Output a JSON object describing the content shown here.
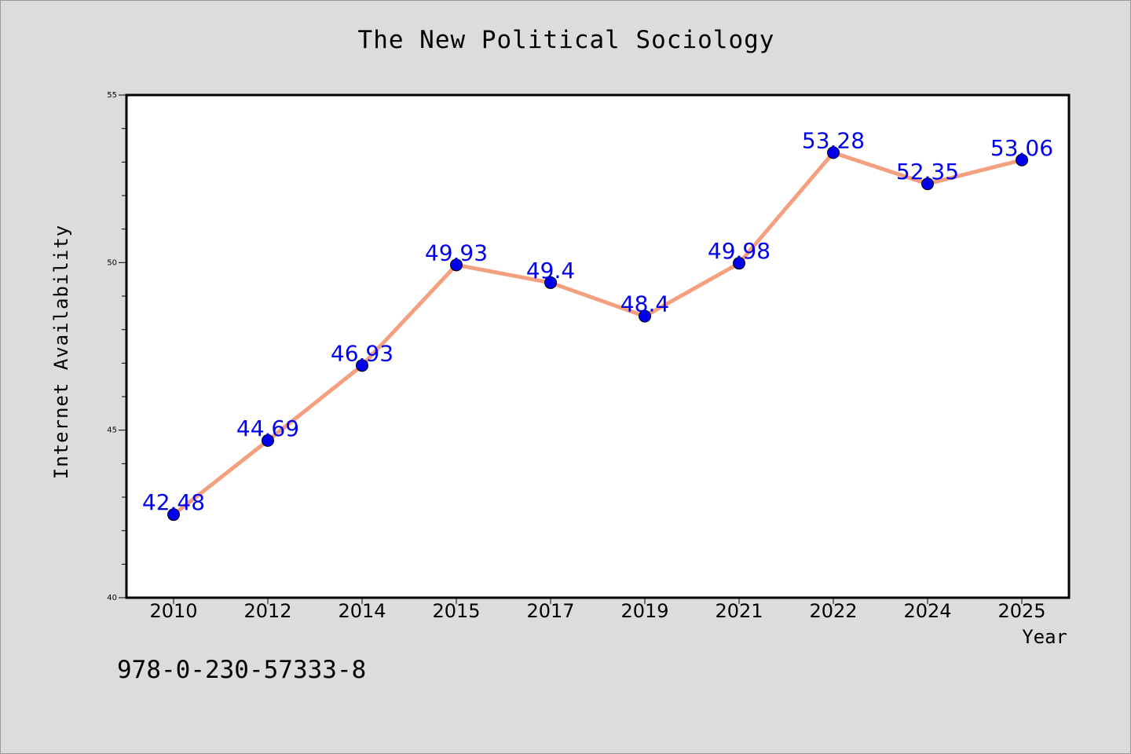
{
  "chart_data": {
    "type": "line",
    "title": "The New Political Sociology",
    "xlabel": "Year",
    "ylabel": "Internet Availability",
    "categories": [
      "2010",
      "2012",
      "2014",
      "2015",
      "2017",
      "2019",
      "2021",
      "2022",
      "2024",
      "2025"
    ],
    "series": [
      {
        "values": [
          42.48,
          44.69,
          46.93,
          49.93,
          49.4,
          48.4,
          49.98,
          53.28,
          52.35,
          53.06
        ],
        "data_labels": [
          "42.48",
          "44.69",
          "46.93",
          "49.93",
          "49.4",
          "48.4",
          "49.98",
          "53.28",
          "52.35",
          "53.06"
        ],
        "line_color": "#f4a07e",
        "marker_color": "#0000ee"
      }
    ],
    "ylim": [
      40,
      55
    ],
    "y_ticks": [
      "40",
      "45",
      "50",
      "55"
    ],
    "grid": false,
    "legend": "none",
    "plot_background": "#ffffff",
    "page_background": "#dcdcdc",
    "label_color": "#0000ee"
  },
  "footer": {
    "isbn": "978-0-230-57333-8"
  }
}
